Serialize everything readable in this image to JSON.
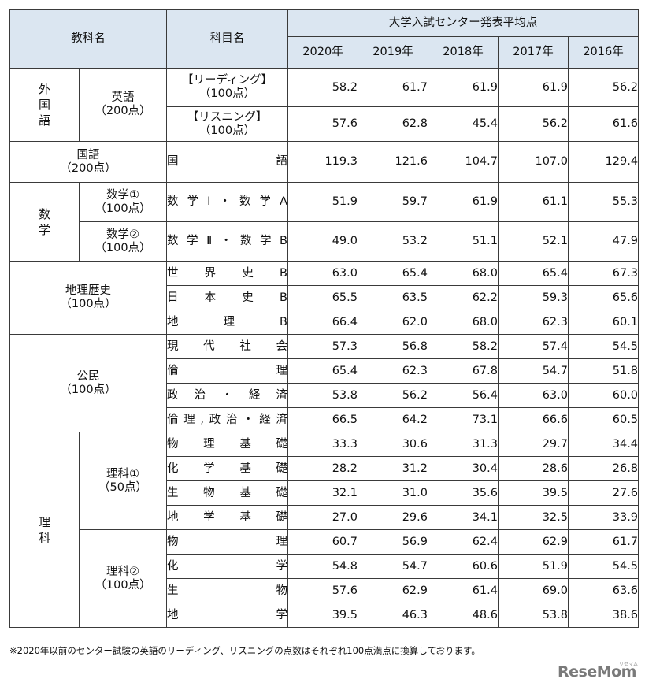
{
  "header": {
    "kyoka": "教科名",
    "kamoku": "科目名",
    "group": "大学入試センター発表平均点",
    "years": [
      "2020年",
      "2019年",
      "2018年",
      "2017年",
      "2016年"
    ]
  },
  "groups": {
    "gaikokugo": "外国語",
    "eigo": "英語",
    "eigo_pts": "（200点）",
    "kokugo": "国語",
    "kokugo_pts": "（200点）",
    "sugaku": "数学",
    "sugaku1": "数学①",
    "sugaku2": "数学②",
    "pts100": "（100点）",
    "chiri": "地理歴史",
    "chiri_pts": "（100点）",
    "komin": "公民",
    "komin_pts": "（100点）",
    "rika": "理科",
    "rika1": "理科①",
    "rika1_pts": "（50点）",
    "rika2": "理科②",
    "rika2_pts": "（100点）"
  },
  "rows": [
    {
      "subject": "【リーディング】",
      "subject2": "（100点）",
      "values": [
        "58.2",
        "61.7",
        "61.9",
        "61.9",
        "56.2"
      ]
    },
    {
      "subject": "【リスニング】",
      "subject2": "（100点）",
      "values": [
        "57.6",
        "62.8",
        "45.4",
        "56.2",
        "61.6"
      ]
    },
    {
      "subject": "国語",
      "values": [
        "119.3",
        "121.6",
        "104.7",
        "107.0",
        "129.4"
      ]
    },
    {
      "subject": "数学Ⅰ・数学A",
      "values": [
        "51.9",
        "59.7",
        "61.9",
        "61.1",
        "55.3"
      ]
    },
    {
      "subject": "数学Ⅱ・数学B",
      "values": [
        "49.0",
        "53.2",
        "51.1",
        "52.1",
        "47.9"
      ]
    },
    {
      "subject": "世界史B",
      "values": [
        "63.0",
        "65.4",
        "68.0",
        "65.4",
        "67.3"
      ]
    },
    {
      "subject": "日本史B",
      "values": [
        "65.5",
        "63.5",
        "62.2",
        "59.3",
        "65.6"
      ]
    },
    {
      "subject": "地理B",
      "values": [
        "66.4",
        "62.0",
        "68.0",
        "62.3",
        "60.1"
      ]
    },
    {
      "subject": "現代社会",
      "values": [
        "57.3",
        "56.8",
        "58.2",
        "57.4",
        "54.5"
      ]
    },
    {
      "subject": "倫理",
      "values": [
        "65.4",
        "62.3",
        "67.8",
        "54.7",
        "51.8"
      ]
    },
    {
      "subject": "政治・経済",
      "values": [
        "53.8",
        "56.2",
        "56.4",
        "63.0",
        "60.0"
      ]
    },
    {
      "subject": "倫理,政治・経済",
      "values": [
        "66.5",
        "64.2",
        "73.1",
        "66.6",
        "60.5"
      ]
    },
    {
      "subject": "物理基礎",
      "values": [
        "33.3",
        "30.6",
        "31.3",
        "29.7",
        "34.4"
      ]
    },
    {
      "subject": "化学基礎",
      "values": [
        "28.2",
        "31.2",
        "30.4",
        "28.6",
        "26.8"
      ]
    },
    {
      "subject": "生物基礎",
      "values": [
        "32.1",
        "31.0",
        "35.6",
        "39.5",
        "27.6"
      ]
    },
    {
      "subject": "地学基礎",
      "values": [
        "27.0",
        "29.6",
        "34.1",
        "32.5",
        "33.9"
      ]
    },
    {
      "subject": "物理",
      "values": [
        "60.7",
        "56.9",
        "62.4",
        "62.9",
        "61.7"
      ]
    },
    {
      "subject": "化学",
      "values": [
        "54.8",
        "54.7",
        "60.6",
        "51.9",
        "54.5"
      ]
    },
    {
      "subject": "生物",
      "values": [
        "57.6",
        "62.9",
        "61.4",
        "69.0",
        "63.6"
      ]
    },
    {
      "subject": "地学",
      "values": [
        "39.5",
        "46.3",
        "48.6",
        "53.8",
        "38.6"
      ]
    }
  ],
  "footnote": "※2020年以前のセンター試験の英語のリーディング、リスニングの点数はそれぞれ100点満点に換算しております。",
  "logo": "ReseMom",
  "logo_mark": "リセマム"
}
